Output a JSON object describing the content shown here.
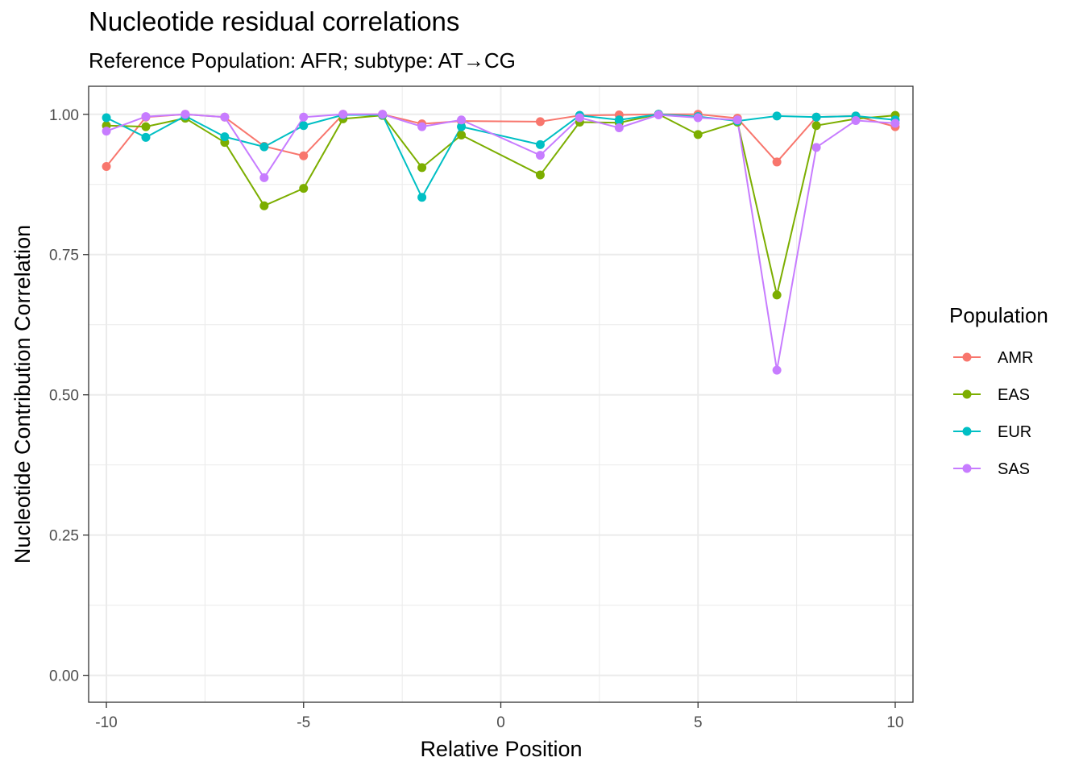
{
  "chart_data": {
    "type": "line",
    "title": "Nucleotide residual correlations",
    "subtitle": "Reference Population: AFR; subtype: AT→CG",
    "xlabel": "Relative Position",
    "ylabel": "Nucleotide Contribution Correlation",
    "xlim": [
      -10.45,
      10.45
    ],
    "ylim": [
      -0.048,
      1.05
    ],
    "x_ticks": [
      -10,
      -5,
      0,
      5,
      10
    ],
    "x_tick_labels": [
      "-10",
      "-5",
      "0",
      "5",
      "10"
    ],
    "y_ticks": [
      0,
      0.25,
      0.5,
      0.75,
      1.0
    ],
    "y_tick_labels": [
      "0.00",
      "0.25",
      "0.50",
      "0.75",
      "1.00"
    ],
    "grid": true,
    "legend": {
      "title": "Population",
      "position": "right"
    },
    "x": [
      -10,
      -9,
      -8,
      -7,
      -6,
      -5,
      -4,
      -3,
      -2,
      -1,
      1,
      2,
      3,
      4,
      5,
      6,
      7,
      8,
      9,
      10
    ],
    "series": [
      {
        "name": "AMR",
        "color": "#F8766D",
        "values": [
          0.907,
          0.995,
          1.0,
          0.995,
          0.943,
          0.926,
          1.0,
          1.0,
          0.983,
          0.988,
          0.987,
          0.998,
          0.999,
          1.0,
          1.0,
          0.993,
          0.915,
          0.995,
          0.997,
          0.978
        ]
      },
      {
        "name": "EAS",
        "color": "#7CAE00",
        "values": [
          0.98,
          0.978,
          0.993,
          0.95,
          0.837,
          0.868,
          0.992,
          0.998,
          0.905,
          0.963,
          0.892,
          0.986,
          0.985,
          1.0,
          0.964,
          0.986,
          0.678,
          0.98,
          0.992,
          0.998
        ]
      },
      {
        "name": "EUR",
        "color": "#00BFC4",
        "values": [
          0.994,
          0.959,
          0.997,
          0.96,
          0.942,
          0.98,
          0.999,
          0.999,
          0.852,
          0.978,
          0.946,
          0.998,
          0.99,
          1.0,
          0.996,
          0.988,
          0.997,
          0.995,
          0.997,
          0.99
        ]
      },
      {
        "name": "SAS",
        "color": "#C77CFF",
        "values": [
          0.97,
          0.996,
          1.0,
          0.995,
          0.887,
          0.995,
          1.0,
          1.0,
          0.978,
          0.99,
          0.927,
          0.994,
          0.976,
          0.999,
          0.994,
          0.99,
          0.544,
          0.941,
          0.989,
          0.984
        ]
      }
    ]
  }
}
